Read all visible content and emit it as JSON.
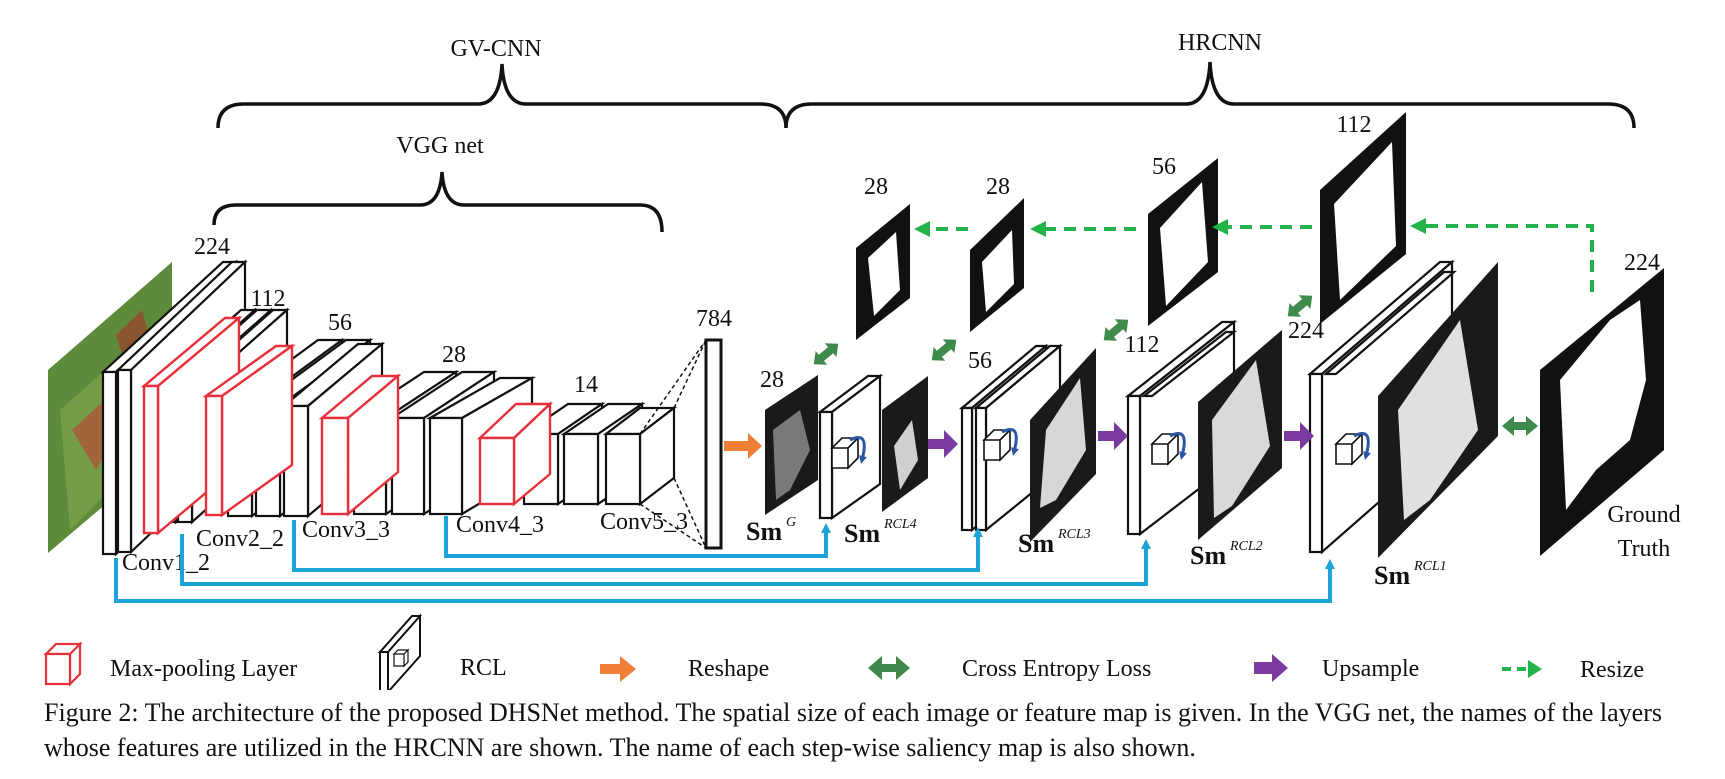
{
  "brackets": {
    "gv_cnn": "GV-CNN",
    "hrcnn": "HRCNN",
    "vgg_net": "VGG net"
  },
  "sizes": {
    "s224": "224",
    "s112": "112",
    "s56": "56",
    "s28": "28",
    "s14": "14",
    "s784": "784",
    "top28a": "28",
    "top28b": "28",
    "top56": "56",
    "top112": "112",
    "gt224": "224",
    "rcl28": "28",
    "rcl56": "56",
    "rcl112": "112",
    "rcl224": "224"
  },
  "layers": {
    "conv1_2": "Conv1_2",
    "conv2_2": "Conv2_2",
    "conv3_3": "Conv3_3",
    "conv4_3": "Conv4_3",
    "conv5_3": "Conv5_3"
  },
  "saliency": {
    "sm_base": "Sm",
    "g": "G",
    "rcl4": "RCL4",
    "rcl3": "RCL3",
    "rcl2": "RCL2",
    "rcl1": "RCL1",
    "ground_truth_line1": "Ground",
    "ground_truth_line2": "Truth"
  },
  "legend": {
    "maxpool": "Max-pooling Layer",
    "rcl": "RCL",
    "reshape": "Reshape",
    "cross_entropy": "Cross Entropy Loss",
    "upsample": "Upsample",
    "resize": "Resize"
  },
  "colors": {
    "maxpool": "#e8303a",
    "reshape": "#ee7f35",
    "cross_entropy": "#3f8a4a",
    "upsample": "#7b3aa0",
    "resize": "#22b34a",
    "skip": "#1ea3d8",
    "rcl_arrow": "#2a56a3"
  },
  "caption": "Figure 2: The architecture of the proposed DHSNet method. The spatial size of each image or feature map is given. In the VGG net, the names of the layers whose features are utilized in the HRCNN are shown. The name of each step-wise saliency map is also shown."
}
